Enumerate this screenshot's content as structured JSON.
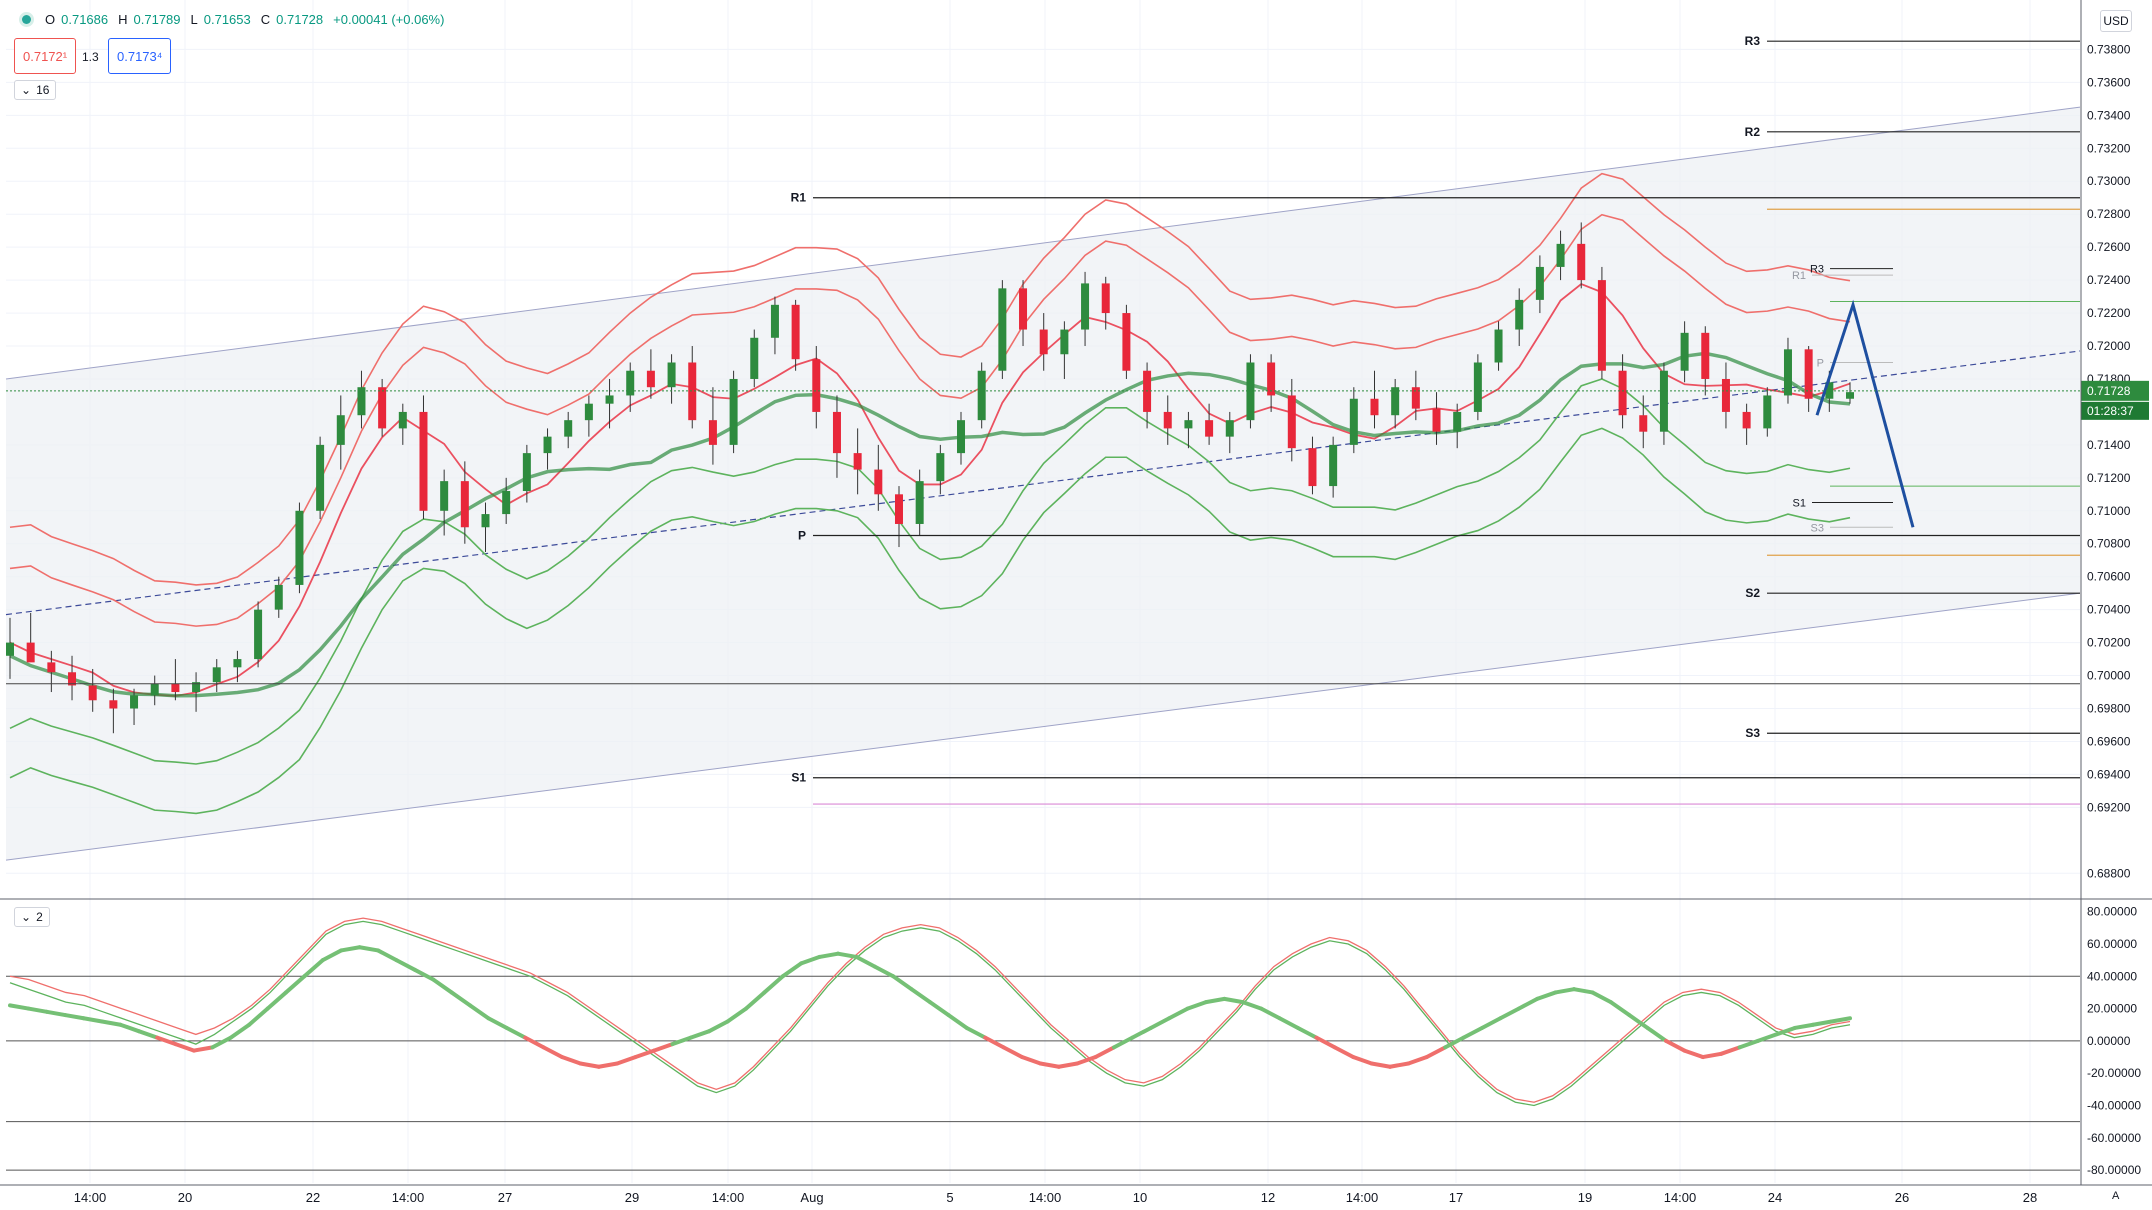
{
  "ohlc": {
    "o_label": "O",
    "o": "0.71686",
    "h_label": "H",
    "h": "0.71789",
    "l_label": "L",
    "l": "0.71653",
    "c_label": "C",
    "c": "0.71728",
    "change": "+0.00041 (+0.06%)"
  },
  "sell_price": "0.7172¹",
  "buy_price": "0.7173⁴",
  "spread": "1.3",
  "pane_main_count": "16",
  "pane_osc_count": "2",
  "currency": "USD",
  "axis_mode": "A",
  "current_price_label": "0.71728",
  "countdown": "01:28:37",
  "colors": {
    "up": "#2e8b3e",
    "down": "#e8273a",
    "upper_band": "#ef6f6c",
    "lower_band": "#5db35d",
    "channel": "#9fa3c7",
    "forecast": "#1e4fa0"
  },
  "chart_data": [
    {
      "type": "candlestick",
      "symbol_hint": "AUD/USD hourly",
      "price_axis": {
        "ylim": [
          0.6865,
          0.741
        ],
        "ticks": [
          "0.73800",
          "0.73600",
          "0.73400",
          "0.73200",
          "0.73000",
          "0.72800",
          "0.72600",
          "0.72400",
          "0.72200",
          "0.72000",
          "0.71800",
          "0.71400",
          "0.71200",
          "0.71000",
          "0.70800",
          "0.70600",
          "0.70400",
          "0.70200",
          "0.70000",
          "0.69800",
          "0.69600",
          "0.69400",
          "0.69200",
          "0.68800"
        ]
      },
      "time_axis": {
        "ticks": [
          "14:00",
          "20",
          "22",
          "14:00",
          "27",
          "29",
          "14:00",
          "Aug",
          "5",
          "14:00",
          "10",
          "12",
          "14:00",
          "17",
          "19",
          "14:00",
          "24",
          "26",
          "28"
        ]
      },
      "candles_ohlc": [
        [
          0.7012,
          0.7035,
          0.6998,
          0.702
        ],
        [
          0.702,
          0.7038,
          0.701,
          0.7008
        ],
        [
          0.7008,
          0.7015,
          0.699,
          0.7002
        ],
        [
          0.7002,
          0.7012,
          0.6985,
          0.6994
        ],
        [
          0.6994,
          0.7004,
          0.6978,
          0.6985
        ],
        [
          0.6985,
          0.6992,
          0.6965,
          0.698
        ],
        [
          0.698,
          0.6992,
          0.697,
          0.6988
        ],
        [
          0.6988,
          0.7,
          0.6982,
          0.6995
        ],
        [
          0.6995,
          0.701,
          0.6985,
          0.699
        ],
        [
          0.699,
          0.7002,
          0.6978,
          0.6996
        ],
        [
          0.6996,
          0.701,
          0.699,
          0.7005
        ],
        [
          0.7005,
          0.7015,
          0.6996,
          0.701
        ],
        [
          0.701,
          0.7045,
          0.7005,
          0.704
        ],
        [
          0.704,
          0.706,
          0.7035,
          0.7055
        ],
        [
          0.7055,
          0.7105,
          0.705,
          0.71
        ],
        [
          0.71,
          0.7145,
          0.7095,
          0.714
        ],
        [
          0.714,
          0.717,
          0.7125,
          0.7158
        ],
        [
          0.7158,
          0.7185,
          0.715,
          0.7175
        ],
        [
          0.7175,
          0.718,
          0.7145,
          0.715
        ],
        [
          0.715,
          0.7165,
          0.714,
          0.716
        ],
        [
          0.716,
          0.717,
          0.7095,
          0.71
        ],
        [
          0.71,
          0.7125,
          0.7085,
          0.7118
        ],
        [
          0.7118,
          0.713,
          0.708,
          0.709
        ],
        [
          0.709,
          0.7105,
          0.7075,
          0.7098
        ],
        [
          0.7098,
          0.712,
          0.7092,
          0.7112
        ],
        [
          0.7112,
          0.714,
          0.7105,
          0.7135
        ],
        [
          0.7135,
          0.715,
          0.7125,
          0.7145
        ],
        [
          0.7145,
          0.716,
          0.7138,
          0.7155
        ],
        [
          0.7155,
          0.717,
          0.7145,
          0.7165
        ],
        [
          0.7165,
          0.718,
          0.715,
          0.717
        ],
        [
          0.717,
          0.719,
          0.716,
          0.7185
        ],
        [
          0.7185,
          0.7198,
          0.7168,
          0.7175
        ],
        [
          0.7175,
          0.7195,
          0.7165,
          0.719
        ],
        [
          0.719,
          0.72,
          0.715,
          0.7155
        ],
        [
          0.7155,
          0.7175,
          0.7128,
          0.714
        ],
        [
          0.714,
          0.7185,
          0.7135,
          0.718
        ],
        [
          0.718,
          0.721,
          0.7175,
          0.7205
        ],
        [
          0.7205,
          0.723,
          0.7195,
          0.7225
        ],
        [
          0.7225,
          0.7228,
          0.7185,
          0.7192
        ],
        [
          0.7192,
          0.72,
          0.715,
          0.716
        ],
        [
          0.716,
          0.717,
          0.712,
          0.7135
        ],
        [
          0.7135,
          0.715,
          0.711,
          0.7125
        ],
        [
          0.7125,
          0.714,
          0.71,
          0.711
        ],
        [
          0.711,
          0.7115,
          0.7078,
          0.7092
        ],
        [
          0.7092,
          0.7125,
          0.7085,
          0.7118
        ],
        [
          0.7118,
          0.714,
          0.711,
          0.7135
        ],
        [
          0.7135,
          0.716,
          0.7128,
          0.7155
        ],
        [
          0.7155,
          0.719,
          0.715,
          0.7185
        ],
        [
          0.7185,
          0.724,
          0.718,
          0.7235
        ],
        [
          0.7235,
          0.724,
          0.72,
          0.721
        ],
        [
          0.721,
          0.722,
          0.7185,
          0.7195
        ],
        [
          0.7195,
          0.7215,
          0.718,
          0.721
        ],
        [
          0.721,
          0.7245,
          0.72,
          0.7238
        ],
        [
          0.7238,
          0.7242,
          0.721,
          0.722
        ],
        [
          0.722,
          0.7225,
          0.718,
          0.7185
        ],
        [
          0.7185,
          0.719,
          0.715,
          0.716
        ],
        [
          0.716,
          0.717,
          0.714,
          0.715
        ],
        [
          0.715,
          0.716,
          0.7138,
          0.7155
        ],
        [
          0.7155,
          0.7165,
          0.714,
          0.7145
        ],
        [
          0.7145,
          0.716,
          0.7135,
          0.7155
        ],
        [
          0.7155,
          0.7195,
          0.715,
          0.719
        ],
        [
          0.719,
          0.7195,
          0.716,
          0.717
        ],
        [
          0.717,
          0.718,
          0.713,
          0.7138
        ],
        [
          0.7138,
          0.7145,
          0.711,
          0.7115
        ],
        [
          0.7115,
          0.7145,
          0.7108,
          0.714
        ],
        [
          0.714,
          0.7175,
          0.7135,
          0.7168
        ],
        [
          0.7168,
          0.7185,
          0.715,
          0.7158
        ],
        [
          0.7158,
          0.718,
          0.715,
          0.7175
        ],
        [
          0.7175,
          0.7185,
          0.7155,
          0.7162
        ],
        [
          0.7162,
          0.7172,
          0.714,
          0.7148
        ],
        [
          0.7148,
          0.7165,
          0.7138,
          0.716
        ],
        [
          0.716,
          0.7195,
          0.7155,
          0.719
        ],
        [
          0.719,
          0.7215,
          0.7185,
          0.721
        ],
        [
          0.721,
          0.7235,
          0.72,
          0.7228
        ],
        [
          0.7228,
          0.7255,
          0.722,
          0.7248
        ],
        [
          0.7248,
          0.727,
          0.724,
          0.7262
        ],
        [
          0.7262,
          0.7275,
          0.7235,
          0.724
        ],
        [
          0.724,
          0.7248,
          0.718,
          0.7185
        ],
        [
          0.7185,
          0.7195,
          0.715,
          0.7158
        ],
        [
          0.7158,
          0.717,
          0.7138,
          0.7148
        ],
        [
          0.7148,
          0.719,
          0.714,
          0.7185
        ],
        [
          0.7185,
          0.7215,
          0.7178,
          0.7208
        ],
        [
          0.7208,
          0.7212,
          0.717,
          0.718
        ],
        [
          0.718,
          0.719,
          0.715,
          0.716
        ],
        [
          0.716,
          0.7165,
          0.714,
          0.715
        ],
        [
          0.715,
          0.7175,
          0.7145,
          0.717
        ],
        [
          0.717,
          0.7205,
          0.7165,
          0.7198
        ],
        [
          0.7198,
          0.72,
          0.716,
          0.7168
        ],
        [
          0.7168,
          0.7185,
          0.716,
          0.7178
        ],
        [
          0.7168,
          0.7178,
          0.7165,
          0.7172
        ]
      ],
      "indicators": {
        "ema_fast_color": "#ef5350",
        "ema_slow_color": "#4caf50",
        "envelope_upper_color": "#ef6f6c",
        "envelope_lower_color": "#5db35d"
      },
      "pivot_levels_weekly": [
        {
          "label": "R1",
          "value": 0.729
        },
        {
          "label": "P",
          "value": 0.7085
        },
        {
          "label": "S1",
          "value": 0.6938
        }
      ],
      "pivot_levels_daily": [
        {
          "label": "R3",
          "value": 0.7385
        },
        {
          "label": "R2",
          "value": 0.733
        },
        {
          "label": "S2",
          "value": 0.705
        },
        {
          "label": "S3",
          "value": 0.6965
        }
      ],
      "pivot_levels_intraday": [
        {
          "label": "R1",
          "value": 0.7243
        },
        {
          "label": "R3",
          "value": 0.7247
        },
        {
          "label": "P",
          "value": 0.719
        },
        {
          "label": "S1",
          "value": 0.7105
        },
        {
          "label": "S3",
          "value": 0.709
        }
      ],
      "horizontal_lines": [
        0.6995
      ],
      "channel": {
        "upper_start": 0.718,
        "upper_end": 0.7345,
        "lower_start": 0.6888,
        "lower_end": 0.705,
        "mid_start": 0.7037,
        "mid_end": 0.7197
      },
      "forecast_path": [
        0.7158,
        0.7225,
        0.709
      ],
      "last_price": 0.71728
    },
    {
      "type": "line",
      "title": "",
      "ylim": [
        -88,
        86
      ],
      "y_ticks": [
        "80.00000",
        "60.00000",
        "40.00000",
        "20.00000",
        "0.00000",
        "-20.00000",
        "-40.00000",
        "-60.00000",
        "-80.00000"
      ],
      "levels": [
        40,
        0,
        -50,
        -80
      ],
      "series": [
        {
          "values": [
            40,
            38,
            34,
            30,
            28,
            24,
            20,
            16,
            12,
            8,
            4,
            8,
            14,
            22,
            32,
            44,
            56,
            68,
            74,
            76,
            74,
            70,
            66,
            62,
            58,
            54,
            50,
            46,
            42,
            36,
            30,
            22,
            14,
            6,
            -2,
            -10,
            -18,
            -26,
            -30,
            -26,
            -16,
            -4,
            8,
            22,
            36,
            48,
            58,
            66,
            70,
            72,
            70,
            64,
            56,
            46,
            34,
            22,
            10,
            0,
            -10,
            -18,
            -24,
            -26,
            -22,
            -14,
            -4,
            8,
            20,
            34,
            46,
            54,
            60,
            64,
            62,
            56,
            46,
            34,
            20,
            6,
            -8,
            -20,
            -30,
            -36,
            -38,
            -34,
            -26,
            -16,
            -6,
            4,
            14,
            24,
            30,
            32,
            30,
            24,
            16,
            8,
            4,
            6,
            10,
            12
          ]
        },
        {
          "values": [
            36,
            32,
            28,
            24,
            22,
            18,
            14,
            10,
            6,
            2,
            -2,
            4,
            12,
            20,
            30,
            42,
            54,
            66,
            72,
            74,
            72,
            68,
            64,
            60,
            56,
            52,
            48,
            44,
            40,
            34,
            28,
            20,
            12,
            4,
            -4,
            -12,
            -20,
            -28,
            -32,
            -28,
            -18,
            -6,
            6,
            20,
            34,
            46,
            56,
            64,
            68,
            70,
            68,
            62,
            54,
            44,
            32,
            20,
            8,
            -2,
            -12,
            -20,
            -26,
            -28,
            -24,
            -16,
            -6,
            6,
            18,
            32,
            44,
            52,
            58,
            62,
            60,
            54,
            44,
            32,
            18,
            4,
            -10,
            -22,
            -32,
            -38,
            -40,
            -36,
            -28,
            -18,
            -8,
            2,
            12,
            22,
            28,
            30,
            28,
            22,
            14,
            6,
            2,
            4,
            8,
            10
          ]
        },
        {
          "values": [
            22,
            20,
            18,
            16,
            14,
            12,
            10,
            6,
            2,
            -2,
            -6,
            -4,
            2,
            10,
            20,
            30,
            40,
            50,
            56,
            58,
            56,
            50,
            44,
            38,
            30,
            22,
            14,
            8,
            2,
            -4,
            -10,
            -14,
            -16,
            -14,
            -10,
            -6,
            -2,
            2,
            6,
            12,
            20,
            30,
            40,
            48,
            52,
            54,
            52,
            46,
            40,
            32,
            24,
            16,
            8,
            2,
            -4,
            -10,
            -14,
            -16,
            -14,
            -10,
            -4,
            2,
            8,
            14,
            20,
            24,
            26,
            24,
            20,
            14,
            8,
            2,
            -4,
            -10,
            -14,
            -16,
            -14,
            -10,
            -4,
            2,
            8,
            14,
            20,
            26,
            30,
            32,
            30,
            24,
            16,
            8,
            0,
            -6,
            -10,
            -8,
            -4,
            0,
            4,
            8,
            10,
            12,
            14
          ]
        }
      ]
    }
  ]
}
